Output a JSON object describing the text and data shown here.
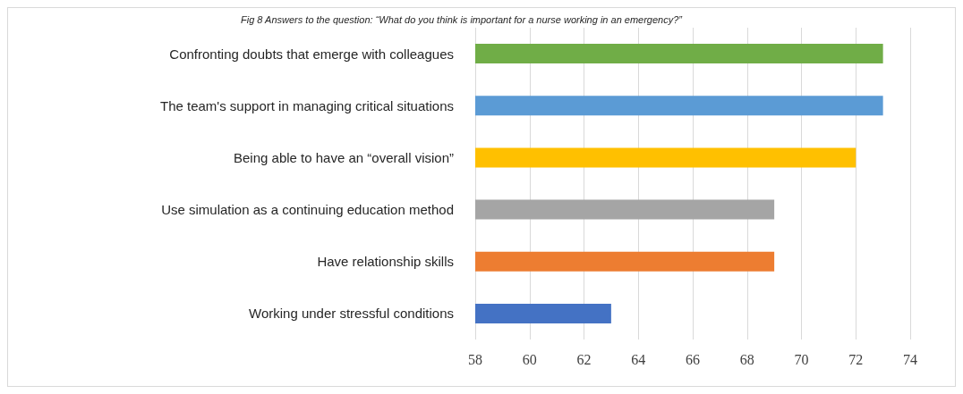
{
  "chart_data": {
    "type": "bar",
    "orientation": "horizontal",
    "title": "Fig 8 Answers to the question: “What do you think is important for a nurse working in an emergency?”",
    "categories": [
      "Confronting doubts that emerge with colleagues",
      "The team's support in managing critical situations",
      "Being able to have an “overall vision”",
      "Use simulation as a continuing education method",
      "Have relationship skills",
      "Working under stressful conditions"
    ],
    "values": [
      73,
      73,
      72,
      69,
      69,
      63
    ],
    "colors": [
      "#70ad47",
      "#5b9bd5",
      "#ffc000",
      "#a5a5a5",
      "#ed7d31",
      "#4472c4"
    ],
    "xlim": [
      58,
      74
    ],
    "xticks": [
      58,
      60,
      62,
      64,
      66,
      68,
      70,
      72,
      74
    ],
    "grid": "x"
  }
}
